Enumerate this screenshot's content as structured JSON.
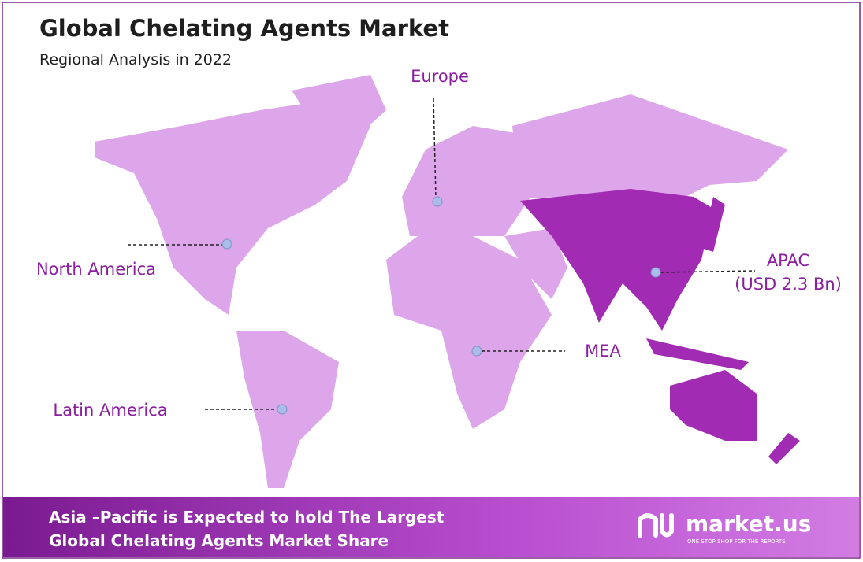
{
  "header": {
    "title": "Global Chelating Agents  Market",
    "subtitle": "Regional Analysis in 2022"
  },
  "regions": [
    {
      "label": "Europe"
    },
    {
      "label": "North America"
    },
    {
      "label": "APAC",
      "value_label": "(USD 2.3 Bn)"
    },
    {
      "label": "MEA"
    },
    {
      "label": "Latin America"
    }
  ],
  "footer": {
    "lines": [
      "Asia –Pacific is Expected to hold The Largest",
      "Global Chelating Agents  Market Share"
    ]
  },
  "logo": {
    "name": "market.us",
    "tagline": "ONE STOP SHOP FOR THE REPORTS"
  }
}
